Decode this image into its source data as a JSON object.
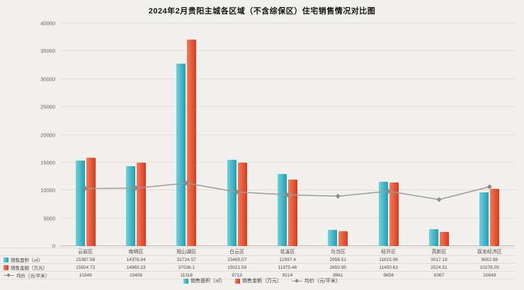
{
  "chart_data": {
    "type": "bar",
    "title": "2024年2月贵阳主城各区域（不含综保区）住宅销售情况对比图",
    "categories": [
      "云岩区",
      "南明区",
      "观山湖区",
      "白云区",
      "花溪区",
      "乌当区",
      "经开区",
      "高新区",
      "双龙经济区"
    ],
    "series": [
      {
        "name": "销售面积（㎡）",
        "type": "bar",
        "color": "#239fb3",
        "color_light": "#6fd0dc",
        "values": [
          15387.58,
          14378.94,
          32724.57,
          15465.07,
          12997.4,
          2958.51,
          11615.96,
          3017.19,
          9652.98
        ]
      },
      {
        "name": "销售金额（万元）",
        "type": "bar",
        "color": "#d63c1e",
        "color_light": "#f47a5a",
        "values": [
          15924.72,
          14965.23,
          37036.1,
          15021.58,
          11975.46,
          2650.95,
          11450.63,
          2524.51,
          10278.05
        ]
      },
      {
        "name": "均价（元/平米）",
        "type": "line",
        "color": "#9c9c9c",
        "marker_color": "#8a8a8a",
        "values": [
          10349,
          10408,
          11318,
          9713,
          9214,
          8961,
          9858,
          8367,
          10649
        ]
      }
    ],
    "ylim": [
      0,
      40000
    ],
    "yticks": [
      0,
      5000,
      10000,
      15000,
      20000,
      25000,
      30000,
      35000,
      40000
    ],
    "grid": true,
    "legend_position": "bottom",
    "legend": [
      "销售面积（㎡）",
      "销售金额（万元）",
      "均价（元/平米）"
    ]
  }
}
